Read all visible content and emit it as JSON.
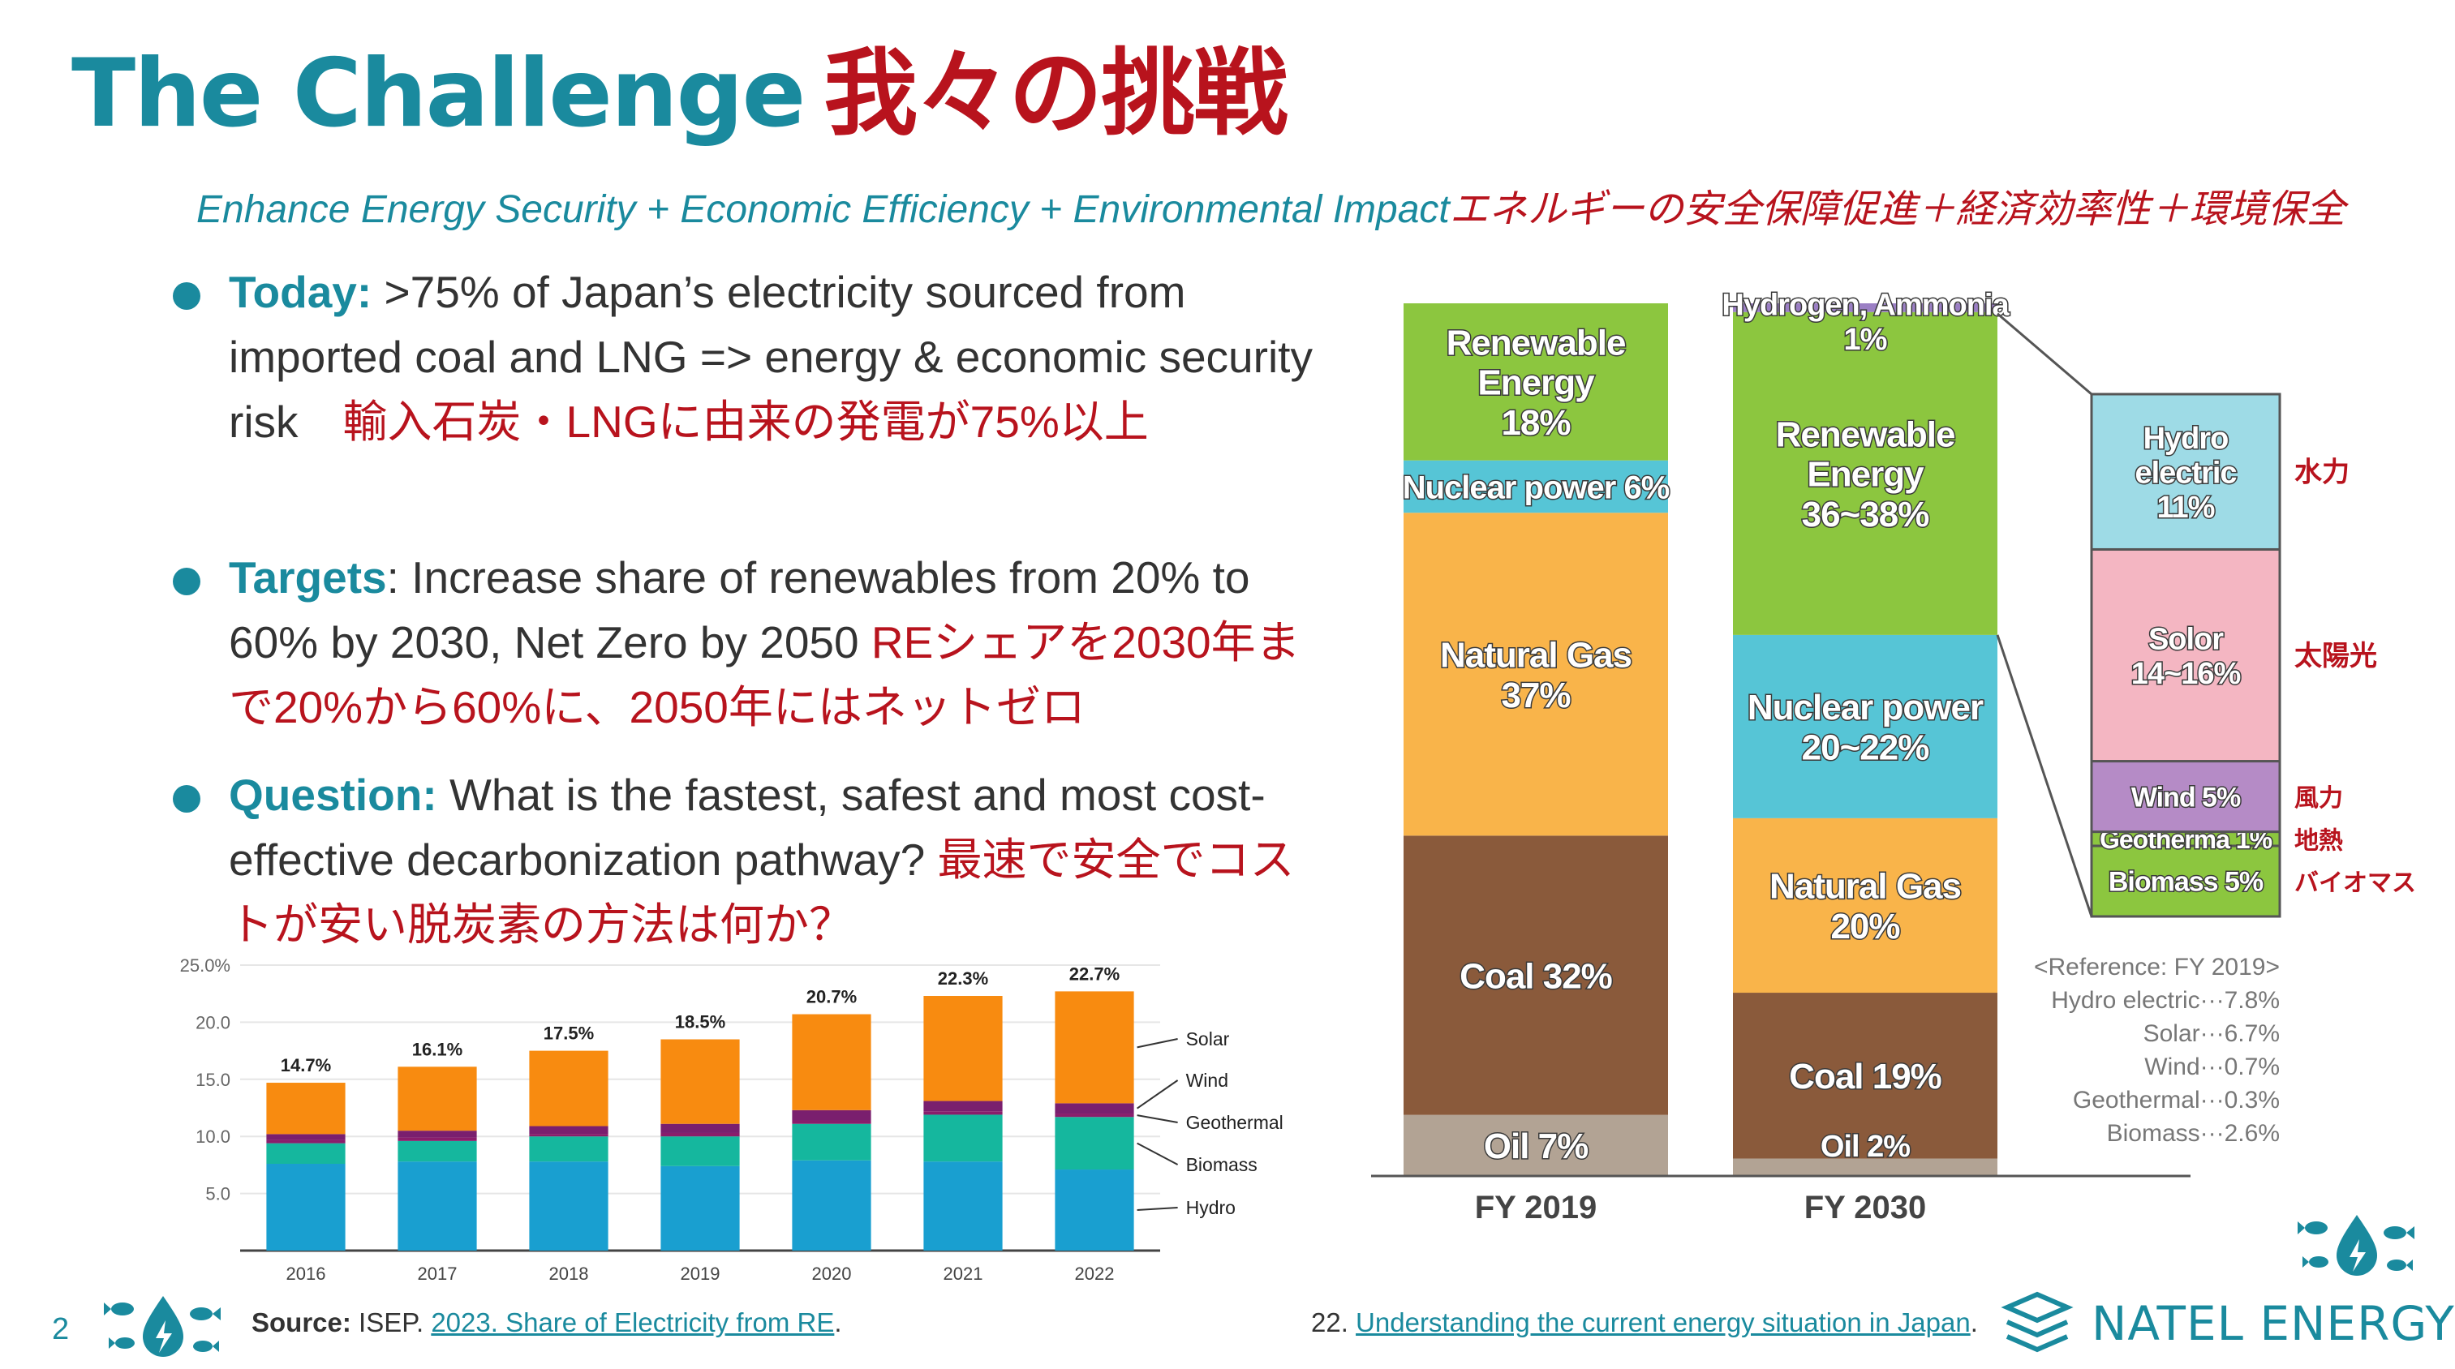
{
  "slide": {
    "page_number": "2",
    "title_en": "The Challenge",
    "title_jp": "我々の挑戦",
    "subtitle_en": "Enhance Energy Security + Economic Efficiency + Environmental Impact",
    "subtitle_jp": "エネルギーの安全保障促進＋経済効率性＋環境保全"
  },
  "bullets": [
    {
      "key": "Today:",
      "text": " >75% of Japan’s electricity sourced from imported coal and LNG => energy & economic security risk　",
      "jp": "輸入石炭・LNGに由来の発電が75%以上"
    },
    {
      "key": "Targets",
      "text": ": Increase share of renewables from 20% to 60% by 2030, Net Zero by 2050 ",
      "jp": "REシェアを2030年まで20%から60%に、2050年にはネットゼロ"
    },
    {
      "key": "Question:",
      "text": " What is the fastest, safest and most cost-effective decarbonization pathway? ",
      "jp": "最速で安全でコストが安い脱炭素の方法は何か？"
    }
  ],
  "footer": {
    "source_label": "Source:",
    "source_org": " ISEP. ",
    "source_link": "2023. Share of Electricity from RE",
    "source_end": ".",
    "ref2_prefix": "22. ",
    "ref2_link": "Understanding the current energy situation in Japan",
    "ref2_end": ".",
    "brand": "NATEL ENERGY"
  },
  "chart_data": [
    {
      "type": "bar",
      "stacked": true,
      "categories": [
        "2016",
        "2017",
        "2018",
        "2019",
        "2020",
        "2021",
        "2022"
      ],
      "series": [
        {
          "name": "Hydro",
          "color": "#199fd0",
          "values": [
            7.6,
            7.8,
            7.8,
            7.4,
            7.9,
            7.8,
            7.1
          ]
        },
        {
          "name": "Biomass",
          "color": "#15b79e",
          "values": [
            1.8,
            1.8,
            2.2,
            2.6,
            3.2,
            4.1,
            4.6
          ]
        },
        {
          "name": "Geothermal",
          "color": "#8a1d6b",
          "values": [
            0.3,
            0.3,
            0.2,
            0.3,
            0.3,
            0.3,
            0.3
          ]
        },
        {
          "name": "Wind",
          "color": "#7a1f6e",
          "values": [
            0.5,
            0.6,
            0.7,
            0.8,
            0.9,
            0.9,
            0.9
          ]
        },
        {
          "name": "Solar",
          "color": "#f88b10",
          "values": [
            4.5,
            5.6,
            6.6,
            7.4,
            8.4,
            9.2,
            9.8
          ]
        }
      ],
      "totals": [
        "14.7%",
        "16.1%",
        "17.5%",
        "18.5%",
        "20.7%",
        "22.3%",
        "22.7%"
      ],
      "total_values": [
        14.7,
        16.1,
        17.5,
        18.5,
        20.7,
        22.3,
        22.7
      ],
      "ylim": [
        0,
        25
      ],
      "yticks": [
        "5.0",
        "10.0",
        "15.0",
        "20.0",
        "25.0%"
      ],
      "ytick_values": [
        5,
        10,
        15,
        20,
        25
      ],
      "legend": [
        "Solar",
        "Wind",
        "Geothermal",
        "Biomass",
        "Hydro"
      ],
      "legend_position": "right"
    },
    {
      "type": "bar",
      "stacked": true,
      "categories": [
        "FY 2019",
        "FY 2030"
      ],
      "fy2019": [
        {
          "label": "Oil 7%",
          "value": 7,
          "color": "#b2a394"
        },
        {
          "label": "Coal 32%",
          "value": 32,
          "color": "#8a5a3b"
        },
        {
          "label": "Natural Gas 37%",
          "lines": [
            "Natural Gas",
            "37%"
          ],
          "value": 37,
          "color": "#f9b44a"
        },
        {
          "label": "Nuclear power 6%",
          "value": 6,
          "color": "#56c5d6"
        },
        {
          "label": "Renewable Energy 18%",
          "lines": [
            "Renewable",
            "Energy",
            "18%"
          ],
          "value": 18,
          "color": "#8cc63f"
        }
      ],
      "fy2030": [
        {
          "label": "Oil 2%",
          "value": 2,
          "color": "#b2a394"
        },
        {
          "label": "Coal 19%",
          "value": 19,
          "color": "#8a5a3b"
        },
        {
          "label": "Natural Gas 20%",
          "lines": [
            "Natural Gas",
            "20%"
          ],
          "value": 20,
          "color": "#f9b44a"
        },
        {
          "label": "Nuclear power 20~22%",
          "lines": [
            "Nuclear power",
            "20~22%"
          ],
          "value": 21,
          "color": "#56c5d6"
        },
        {
          "label": "Renewable Energy 36~38%",
          "lines": [
            "Renewable",
            "Energy",
            "36~38%"
          ],
          "value": 37,
          "color": "#8cc63f"
        },
        {
          "label": "Hydrogen, Ammonia 1%",
          "lines": [
            "Hydrogen, Ammonia",
            "1%"
          ],
          "value": 1,
          "color": "#9b7fc4"
        }
      ],
      "re_breakdown": [
        {
          "label": "Biomass 5%",
          "lines": [
            "Biomass 5%"
          ],
          "value": 5,
          "color": "#8cc63f",
          "jp": "バイオマス"
        },
        {
          "label": "Geotherma 1%",
          "lines": [
            "Geotherma 1%"
          ],
          "value": 1,
          "color": "#8cc63f",
          "jp": "地熱"
        },
        {
          "label": "Wind 5%",
          "lines": [
            "Wind 5%"
          ],
          "value": 5,
          "color": "#b58bc6",
          "jp": "風力"
        },
        {
          "label": "Solor 14~16%",
          "lines": [
            "Solor",
            "14~16%"
          ],
          "value": 15,
          "color": "#f4b6c2",
          "jp": "太陽光"
        },
        {
          "label": "Hydro electric 11%",
          "lines": [
            "Hydro",
            "electric",
            "11%"
          ],
          "value": 11,
          "color": "#9edbe6",
          "jp": "水力"
        }
      ],
      "reference": [
        "<Reference: FY 2019>",
        "Hydro electric···7.8%",
        "Solar···6.7%",
        "Wind···0.7%",
        "Geothermal···0.3%",
        "Biomass···2.6%"
      ]
    }
  ]
}
